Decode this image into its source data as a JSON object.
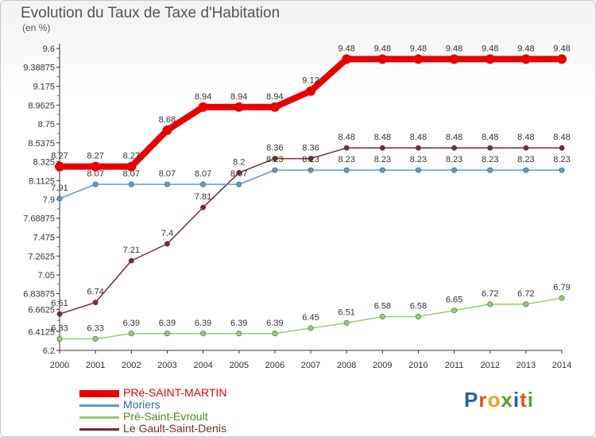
{
  "title": "Evolution du Taux de Taxe d'Habitation",
  "unit": "(en %)",
  "logo": {
    "text": "Proxiti",
    "letters": [
      {
        "ch": "P",
        "color": "#1f5fbf"
      },
      {
        "ch": "r",
        "color": "#e0541f"
      },
      {
        "ch": "o",
        "color": "#f0a020"
      },
      {
        "ch": "x",
        "color": "#5aa02c"
      },
      {
        "ch": "i",
        "color": "#1f5fbf"
      },
      {
        "ch": "t",
        "color": "#e0541f"
      },
      {
        "ch": "i",
        "color": "#5aa02c"
      }
    ]
  },
  "chart_data": {
    "type": "line",
    "title": "Evolution du Taux de Taxe d'Habitation",
    "ylabel": "(en %)",
    "xlabel": "",
    "ylim": [
      6.2,
      9.6
    ],
    "grid": false,
    "legend_position": "bottom-left",
    "x": [
      "2000",
      "2001",
      "2002",
      "2003",
      "2004",
      "2005",
      "2006",
      "2007",
      "2008",
      "2009",
      "2010",
      "2011",
      "2012",
      "2013",
      "2014"
    ],
    "yticks": [
      "6.2",
      "6.4125",
      "6.6625",
      "6.83875",
      "7.05",
      "7.2625",
      "7.475",
      "7.68875",
      "7.9",
      "8.1125",
      "8.325",
      "8.5375",
      "8.75",
      "8.9625",
      "9.175",
      "9.38875",
      "9.6"
    ],
    "series": [
      {
        "name": "PRé-SAINT-MARTIN",
        "color": "#e80000",
        "width": 8,
        "labels": [
          "8.27",
          "8.27",
          "8.27",
          "8.68",
          "8.94",
          "8.94",
          "8.94",
          "9.12",
          "9.48",
          "9.48",
          "9.48",
          "9.48",
          "9.48",
          "9.48",
          "9.48"
        ],
        "values": [
          8.27,
          8.27,
          8.27,
          8.68,
          8.94,
          8.94,
          8.94,
          9.12,
          9.48,
          9.48,
          9.48,
          9.48,
          9.48,
          9.48,
          9.48
        ]
      },
      {
        "name": "Moriers",
        "color": "#5b9bd5",
        "width": 1.5,
        "labels": [
          "7.91",
          "8.07",
          "8.07",
          "8.07",
          "8.07",
          "8.07",
          "8.23",
          "8.23",
          "8.23",
          "8.23",
          "8.23",
          "8.23",
          "8.23",
          "8.23",
          "8.23"
        ],
        "values": [
          7.91,
          8.07,
          8.07,
          8.07,
          8.07,
          8.07,
          8.23,
          8.23,
          8.23,
          8.23,
          8.23,
          8.23,
          8.23,
          8.23,
          8.23
        ]
      },
      {
        "name": "Pré-Saint-Évroult",
        "color": "#8fd16a",
        "width": 1.5,
        "labels": [
          "6.33",
          "6.33",
          "6.39",
          "6.39",
          "6.39",
          "6.39",
          "6.39",
          "6.45",
          "6.51",
          "6.58",
          "6.58",
          "6.65",
          "6.72",
          "6.72",
          "6.79"
        ],
        "values": [
          6.33,
          6.33,
          6.39,
          6.39,
          6.39,
          6.39,
          6.39,
          6.45,
          6.51,
          6.58,
          6.58,
          6.65,
          6.72,
          6.72,
          6.79
        ]
      },
      {
        "name": "Le Gault-Saint-Denis",
        "color": "#7a2a2a",
        "width": 1.5,
        "labels": [
          "6.61",
          "6.74",
          "7.21",
          "7.4",
          "7.81",
          "8.2",
          "8.36",
          "8.36",
          "8.48",
          "8.48",
          "8.48",
          "8.48",
          "8.48",
          "8.48",
          "8.48"
        ],
        "values": [
          6.61,
          6.74,
          7.21,
          7.4,
          7.81,
          8.2,
          8.36,
          8.36,
          8.48,
          8.48,
          8.48,
          8.48,
          8.48,
          8.48,
          8.48
        ]
      }
    ]
  }
}
